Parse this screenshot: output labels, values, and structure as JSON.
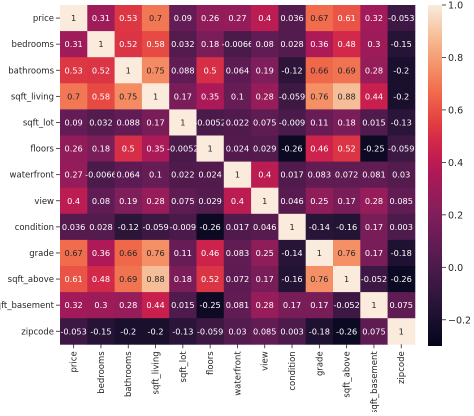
{
  "chart_data": {
    "type": "heatmap",
    "rows": [
      "price",
      "bedrooms",
      "bathrooms",
      "sqft_living",
      "sqft_lot",
      "floors",
      "waterfront",
      "view",
      "condition",
      "grade",
      "sqft_above",
      "sqft_basement",
      "zipcode"
    ],
    "columns": [
      "price",
      "bedrooms",
      "bathrooms",
      "sqft_living",
      "sqft_lot",
      "floors",
      "waterfront",
      "view",
      "condition",
      "grade",
      "sqft_above",
      "sqft_basement",
      "zipcode"
    ],
    "values": [
      [
        1,
        0.31,
        0.53,
        0.7,
        0.09,
        0.26,
        0.27,
        0.4,
        0.036,
        0.67,
        0.61,
        0.32,
        -0.053
      ],
      [
        0.31,
        1,
        0.52,
        0.58,
        0.032,
        0.18,
        -0.0066,
        0.08,
        0.028,
        0.36,
        0.48,
        0.3,
        -0.15
      ],
      [
        0.53,
        0.52,
        1,
        0.75,
        0.088,
        0.5,
        0.064,
        0.19,
        -0.12,
        0.66,
        0.69,
        0.28,
        -0.2
      ],
      [
        0.7,
        0.58,
        0.75,
        1,
        0.17,
        0.35,
        0.1,
        0.28,
        -0.059,
        0.76,
        0.88,
        0.44,
        -0.2
      ],
      [
        0.09,
        0.032,
        0.088,
        0.17,
        1,
        -0.0052,
        0.022,
        0.075,
        -0.009,
        0.11,
        0.18,
        0.015,
        -0.13
      ],
      [
        0.26,
        0.18,
        0.5,
        0.35,
        -0.0052,
        1,
        0.024,
        0.029,
        -0.26,
        0.46,
        0.52,
        -0.25,
        -0.059
      ],
      [
        0.27,
        -0.0066,
        0.064,
        0.1,
        0.022,
        0.024,
        1,
        0.4,
        0.017,
        0.083,
        0.072,
        0.081,
        0.03
      ],
      [
        0.4,
        0.08,
        0.19,
        0.28,
        0.075,
        0.029,
        0.4,
        1,
        0.046,
        0.25,
        0.17,
        0.28,
        0.085
      ],
      [
        0.036,
        0.028,
        -0.12,
        -0.059,
        -0.009,
        -0.26,
        0.017,
        0.046,
        1,
        -0.14,
        -0.16,
        0.17,
        0.003
      ],
      [
        0.67,
        0.36,
        0.66,
        0.76,
        0.11,
        0.46,
        0.083,
        0.25,
        -0.14,
        1,
        0.76,
        0.17,
        -0.18
      ],
      [
        0.61,
        0.48,
        0.69,
        0.88,
        0.18,
        0.52,
        0.072,
        0.17,
        -0.16,
        0.76,
        1,
        -0.052,
        -0.26
      ],
      [
        0.32,
        0.3,
        0.28,
        0.44,
        0.015,
        -0.25,
        0.081,
        0.28,
        0.17,
        0.17,
        -0.052,
        1,
        0.075
      ],
      [
        -0.053,
        -0.15,
        -0.2,
        -0.2,
        -0.13,
        -0.059,
        0.03,
        0.085,
        0.003,
        -0.18,
        -0.26,
        0.075,
        1
      ]
    ],
    "labels": [
      [
        "1",
        "0.31",
        "0.53",
        "0.7",
        "0.09",
        "0.26",
        "0.27",
        "0.4",
        "0.036",
        "0.67",
        "0.61",
        "0.32",
        "-0.053"
      ],
      [
        "0.31",
        "1",
        "0.52",
        "0.58",
        "0.032",
        "0.18",
        "-0.0066",
        "0.08",
        "0.028",
        "0.36",
        "0.48",
        "0.3",
        "-0.15"
      ],
      [
        "0.53",
        "0.52",
        "1",
        "0.75",
        "0.088",
        "0.5",
        "0.064",
        "0.19",
        "-0.12",
        "0.66",
        "0.69",
        "0.28",
        "-0.2"
      ],
      [
        "0.7",
        "0.58",
        "0.75",
        "1",
        "0.17",
        "0.35",
        "0.1",
        "0.28",
        "-0.059",
        "0.76",
        "0.88",
        "0.44",
        "-0.2"
      ],
      [
        "0.09",
        "0.032",
        "0.088",
        "0.17",
        "1",
        "-0.0052",
        "0.022",
        "0.075",
        "-0.009",
        "0.11",
        "0.18",
        "0.015",
        "-0.13"
      ],
      [
        "0.26",
        "0.18",
        "0.5",
        "0.35",
        "-0.0052",
        "1",
        "0.024",
        "0.029",
        "-0.26",
        "0.46",
        "0.52",
        "-0.25",
        "-0.059"
      ],
      [
        "0.27",
        "-0.0066",
        "0.064",
        "0.1",
        "0.022",
        "0.024",
        "1",
        "0.4",
        "0.017",
        "0.083",
        "0.072",
        "0.081",
        "0.03"
      ],
      [
        "0.4",
        "0.08",
        "0.19",
        "0.28",
        "0.075",
        "0.029",
        "0.4",
        "1",
        "0.046",
        "0.25",
        "0.17",
        "0.28",
        "0.085"
      ],
      [
        "0.036",
        "0.028",
        "-0.12",
        "-0.059",
        "-0.009",
        "-0.26",
        "0.017",
        "0.046",
        "1",
        "-0.14",
        "-0.16",
        "0.17",
        "0.003"
      ],
      [
        "0.67",
        "0.36",
        "0.66",
        "0.76",
        "0.11",
        "0.46",
        "0.083",
        "0.25",
        "-0.14",
        "1",
        "0.76",
        "0.17",
        "-0.18"
      ],
      [
        "0.61",
        "0.48",
        "0.69",
        "0.88",
        "0.18",
        "0.52",
        "0.072",
        "0.17",
        "-0.16",
        "0.76",
        "1",
        "-0.052",
        "-0.26"
      ],
      [
        "0.32",
        "0.3",
        "0.28",
        "0.44",
        "0.015",
        "-0.25",
        "0.081",
        "0.28",
        "0.17",
        "0.17",
        "-0.052",
        "1",
        "0.075"
      ],
      [
        "-0.053",
        "-0.15",
        "-0.2",
        "-0.2",
        "-0.13",
        "-0.059",
        "0.03",
        "0.085",
        "0.003",
        "-0.18",
        "-0.26",
        "0.075",
        "1"
      ]
    ],
    "colorbar": {
      "colormap": "rocket",
      "range": [
        -0.3,
        1.0
      ],
      "ticks": [
        -0.2,
        0.0,
        0.2,
        0.4,
        0.6,
        0.8,
        1.0
      ],
      "tick_labels": [
        "−0.2",
        "0.0",
        "0.2",
        "0.4",
        "0.6",
        "0.8",
        "1.0"
      ]
    },
    "title": "",
    "xlabel": "",
    "ylabel": "",
    "grid": false,
    "legend": "colorbar-right"
  }
}
